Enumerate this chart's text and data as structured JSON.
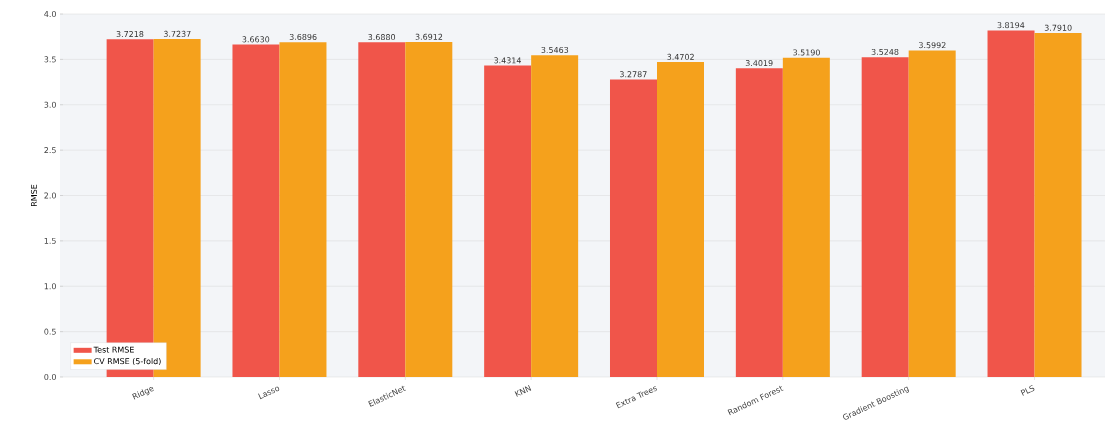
{
  "chart_data": {
    "type": "bar",
    "ylabel": "RMSE",
    "categories": [
      "Ridge",
      "Lasso",
      "ElasticNet",
      "KNN",
      "Extra Trees",
      "Random Forest",
      "Gradient Boosting",
      "PLS"
    ],
    "series": [
      {
        "name": "Test RMSE",
        "color": "#f0554a",
        "values": [
          3.7218,
          3.663,
          3.688,
          3.4314,
          3.2787,
          3.4019,
          3.5248,
          3.8194
        ],
        "value_labels": [
          "3.7218",
          "3.6630",
          "3.6880",
          "3.4314",
          "3.2787",
          "3.4019",
          "3.5248",
          "3.8194"
        ]
      },
      {
        "name": "CV RMSE (5-fold)",
        "color": "#f5a11c",
        "values": [
          3.7237,
          3.6896,
          3.6912,
          3.5463,
          3.4702,
          3.519,
          3.5992,
          3.791
        ],
        "value_labels": [
          "3.7237",
          "3.6896",
          "3.6912",
          "3.5463",
          "3.4702",
          "3.5190",
          "3.5992",
          "3.7910"
        ]
      }
    ],
    "ylim": [
      0,
      4
    ],
    "yticks": [
      {
        "value": 0,
        "label": "0.0"
      },
      {
        "value": 0.5,
        "label": "0.5"
      },
      {
        "value": 1,
        "label": "1.0"
      },
      {
        "value": 1.5,
        "label": "1.5"
      },
      {
        "value": 2,
        "label": "2.0"
      },
      {
        "value": 2.5,
        "label": "2.5"
      },
      {
        "value": 3,
        "label": "3.0"
      },
      {
        "value": 3.5,
        "label": "3.5"
      },
      {
        "value": 4,
        "label": "4.0"
      }
    ],
    "grid": "y",
    "legend": "bottom left"
  }
}
